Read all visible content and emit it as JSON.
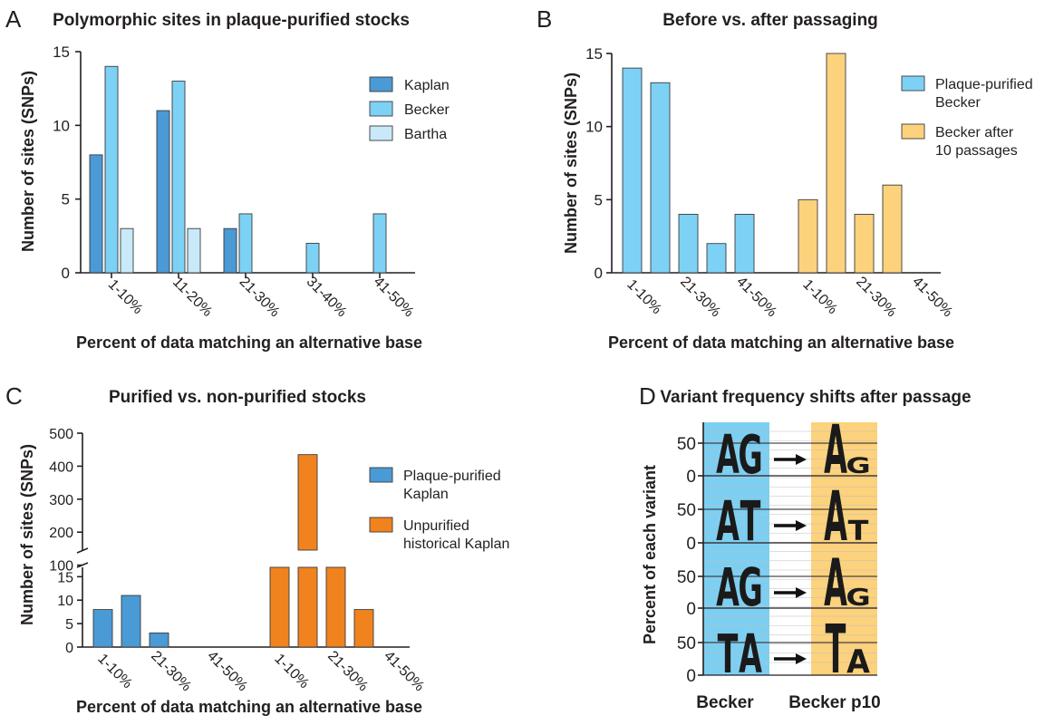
{
  "colors": {
    "kaplan": "#4a9ad5",
    "becker": "#7dd1f5",
    "bartha": "#c8e9f8",
    "becker_p10": "#fdd27d",
    "unpurified": "#f0831e",
    "axis": "#231f20",
    "panel_d_left_bg": "#7dcff2",
    "panel_d_right_bg": "#fdd27d",
    "gap_grid": "#bdbdbd"
  },
  "chart_data": [
    {
      "panel": "A",
      "type": "bar",
      "title": "Polymorphic sites in plaque-purified stocks",
      "xlabel": "Percent of data matching an alternative base",
      "ylabel": "Number of sites (SNPs)",
      "ylim": [
        0,
        15
      ],
      "yticks": [
        "0",
        "5",
        "10",
        "15"
      ],
      "categories": [
        "1-10%",
        "11-20%",
        "21-30%",
        "31-40%",
        "41-50%"
      ],
      "series": [
        {
          "name": "Kaplan",
          "color_key": "kaplan",
          "values": [
            8,
            11,
            3,
            0,
            0
          ]
        },
        {
          "name": "Becker",
          "color_key": "becker",
          "values": [
            14,
            13,
            4,
            2,
            4
          ]
        },
        {
          "name": "Bartha",
          "color_key": "bartha",
          "values": [
            3,
            3,
            0,
            0,
            0
          ]
        }
      ],
      "legend": "top-right"
    },
    {
      "panel": "B",
      "type": "bar",
      "title": "Before vs. after passaging",
      "xlabel": "Percent of data matching an alternative base",
      "ylabel": "Number of sites (SNPs)",
      "ylim": [
        0,
        15
      ],
      "yticks": [
        "0",
        "5",
        "10",
        "15"
      ],
      "groups": [
        {
          "name": "Plaque-purified Becker",
          "legend_lines": [
            "Plaque-purified",
            "Becker"
          ],
          "color_key": "becker",
          "categories": [
            "1-10%",
            "11-20%",
            "21-30%",
            "31-40%",
            "41-50%"
          ],
          "tick_labels": [
            "1-10%",
            "21-30%",
            "41-50%"
          ],
          "values": [
            14,
            13,
            4,
            2,
            4
          ]
        },
        {
          "name": "Becker after 10 passages",
          "legend_lines": [
            "Becker after",
            "10 passages"
          ],
          "color_key": "becker_p10",
          "categories": [
            "1-10%",
            "11-20%",
            "21-30%",
            "31-40%",
            "41-50%"
          ],
          "tick_labels": [
            "1-10%",
            "21-30%",
            "41-50%"
          ],
          "values": [
            5,
            15,
            4,
            6,
            0
          ]
        }
      ],
      "legend": "top-right"
    },
    {
      "panel": "C",
      "type": "bar",
      "title": "Purified vs. non-purified stocks",
      "xlabel": "Percent of data matching an alternative base",
      "ylabel": "Number of sites (SNPs)",
      "broken_axis": true,
      "ylim_lower": [
        0,
        17
      ],
      "yticks_lower": [
        "0",
        "5",
        "10",
        "15"
      ],
      "ylim_upper": [
        0,
        500
      ],
      "yticks_upper": [
        "100",
        "200",
        "300",
        "400",
        "500"
      ],
      "groups": [
        {
          "name": "Plaque-purified Kaplan",
          "legend_lines": [
            "Plaque-purified",
            "Kaplan"
          ],
          "color_key": "kaplan",
          "categories": [
            "1-10%",
            "11-20%",
            "21-30%",
            "31-40%",
            "41-50%"
          ],
          "tick_labels": [
            "1-10%",
            "21-30%",
            "41-50%"
          ],
          "values": [
            8,
            11,
            3,
            0,
            0
          ]
        },
        {
          "name": "Unpurified historical Kaplan",
          "legend_lines": [
            "Unpurified",
            "historical Kaplan"
          ],
          "color_key": "unpurified",
          "categories": [
            "1-10%",
            "11-20%",
            "21-30%",
            "31-40%",
            "41-50%"
          ],
          "tick_labels": [
            "1-10%",
            "21-30%",
            "41-50%"
          ],
          "values": [
            50,
            435,
            55,
            8,
            0
          ]
        }
      ],
      "legend": "top-right"
    },
    {
      "panel": "D",
      "type": "logo",
      "title": "Variant frequency shifts after passage",
      "ylabel": "Percent of each variant",
      "yticks": [
        "0",
        "50"
      ],
      "columns": [
        "Becker",
        "Becker p10"
      ],
      "rows": [
        {
          "left": [
            {
              "letter": "A",
              "pct": 50
            },
            {
              "letter": "G",
              "pct": 50
            }
          ],
          "right": [
            {
              "letter": "A",
              "pct": 80
            },
            {
              "letter": "G",
              "pct": 20
            }
          ]
        },
        {
          "left": [
            {
              "letter": "A",
              "pct": 50
            },
            {
              "letter": "T",
              "pct": 50
            }
          ],
          "right": [
            {
              "letter": "A",
              "pct": 75
            },
            {
              "letter": "T",
              "pct": 25
            }
          ]
        },
        {
          "left": [
            {
              "letter": "A",
              "pct": 50
            },
            {
              "letter": "G",
              "pct": 50
            }
          ],
          "right": [
            {
              "letter": "A",
              "pct": 78
            },
            {
              "letter": "G",
              "pct": 22
            }
          ]
        },
        {
          "left": [
            {
              "letter": "T",
              "pct": 50
            },
            {
              "letter": "A",
              "pct": 50
            }
          ],
          "right": [
            {
              "letter": "T",
              "pct": 70
            },
            {
              "letter": "A",
              "pct": 30
            }
          ]
        }
      ]
    }
  ],
  "panel_letters": [
    "A",
    "B",
    "C",
    "D"
  ]
}
